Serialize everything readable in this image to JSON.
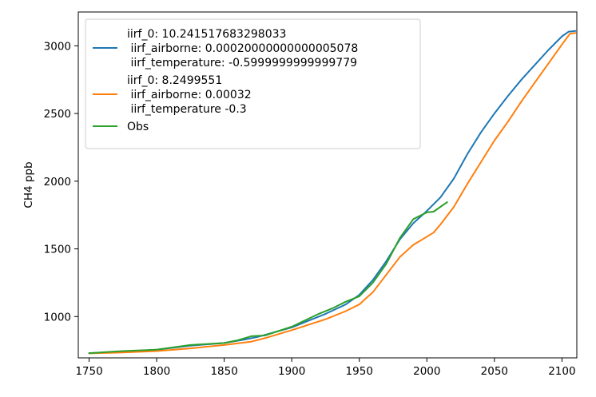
{
  "chart_data": {
    "type": "line",
    "title": "",
    "xlabel": "",
    "ylabel": "CH4 ppb",
    "xlim": [
      1742,
      2111
    ],
    "ylim": [
      695,
      3250
    ],
    "xticks": [
      1750,
      1800,
      1850,
      1900,
      1950,
      2000,
      2050,
      2100
    ],
    "yticks": [
      1000,
      1500,
      2000,
      2500,
      3000
    ],
    "grid": false,
    "legend_position": "top-left",
    "series": [
      {
        "name": "iirf_0: 10.241517683298033\n iirf_airborne: 0.00020000000000005078\n iirf_temperature: -0.5999999999999779",
        "color": "#1f77b4",
        "x": [
          1750,
          1775,
          1800,
          1825,
          1850,
          1865,
          1875,
          1900,
          1925,
          1940,
          1950,
          1960,
          1970,
          1980,
          1990,
          2000,
          2010,
          2020,
          2030,
          2040,
          2050,
          2060,
          2070,
          2080,
          2090,
          2100,
          2105,
          2110
        ],
        "y": [
          730,
          740,
          755,
          785,
          805,
          830,
          850,
          920,
          1020,
          1090,
          1160,
          1270,
          1410,
          1570,
          1690,
          1780,
          1880,
          2020,
          2200,
          2360,
          2500,
          2630,
          2750,
          2860,
          2970,
          3070,
          3105,
          3110
        ]
      },
      {
        "name": "iirf_0: 8.2499551\n iirf_airborne: 0.00032\n iirf_temperature -0.3",
        "color": "#ff7f0e",
        "x": [
          1750,
          1775,
          1800,
          1825,
          1850,
          1870,
          1880,
          1900,
          1925,
          1940,
          1950,
          1960,
          1970,
          1980,
          1990,
          2000,
          2005,
          2010,
          2020,
          2030,
          2040,
          2050,
          2060,
          2070,
          2080,
          2090,
          2100,
          2106,
          2110
        ],
        "y": [
          728,
          735,
          745,
          765,
          790,
          815,
          840,
          900,
          980,
          1040,
          1090,
          1180,
          1310,
          1440,
          1530,
          1590,
          1620,
          1680,
          1810,
          1980,
          2140,
          2300,
          2440,
          2590,
          2730,
          2870,
          3010,
          3090,
          3095
        ]
      },
      {
        "name": "Obs",
        "color": "#2ca02c",
        "x": [
          1750,
          1775,
          1800,
          1825,
          1850,
          1860,
          1870,
          1880,
          1900,
          1920,
          1930,
          1940,
          1950,
          1960,
          1970,
          1980,
          1990,
          2000,
          2005,
          2010,
          2015
        ],
        "y": [
          730,
          745,
          755,
          790,
          805,
          825,
          855,
          860,
          925,
          1020,
          1060,
          1110,
          1150,
          1250,
          1390,
          1580,
          1720,
          1770,
          1775,
          1810,
          1845
        ]
      }
    ]
  }
}
